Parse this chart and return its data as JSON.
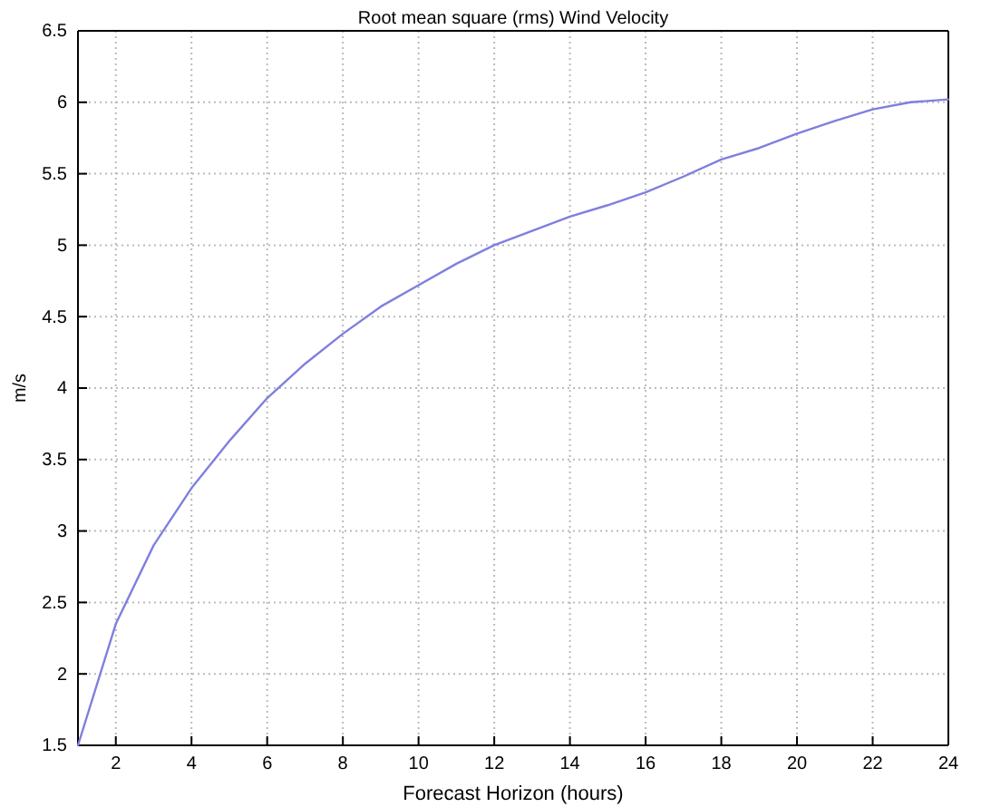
{
  "chart_data": {
    "type": "line",
    "title": "Root mean square (rms) Wind Velocity",
    "xlabel": "Forecast Horizon (hours)",
    "ylabel": "m/s",
    "x": [
      1,
      2,
      3,
      4,
      5,
      6,
      7,
      8,
      9,
      10,
      11,
      12,
      13,
      14,
      15,
      16,
      17,
      18,
      19,
      20,
      21,
      22,
      23,
      24
    ],
    "series": [
      {
        "color": "#7f7fdf",
        "values": [
          1.5,
          2.35,
          2.9,
          3.3,
          3.63,
          3.93,
          4.17,
          4.38,
          4.57,
          4.72,
          4.87,
          5.0,
          5.1,
          5.2,
          5.28,
          5.37,
          5.48,
          5.6,
          5.68,
          5.78,
          5.87,
          5.95,
          6.0,
          6.02
        ]
      }
    ],
    "xlim": [
      1,
      24
    ],
    "xticks": [
      2,
      4,
      6,
      8,
      10,
      12,
      14,
      16,
      18,
      20,
      22,
      24
    ],
    "ylim": [
      1.5,
      6.5
    ],
    "yticks": [
      1.5,
      2,
      2.5,
      3,
      3.5,
      4,
      4.5,
      5,
      5.5,
      6,
      6.5
    ],
    "grid": true,
    "line_style": "solid",
    "marker": "none"
  }
}
